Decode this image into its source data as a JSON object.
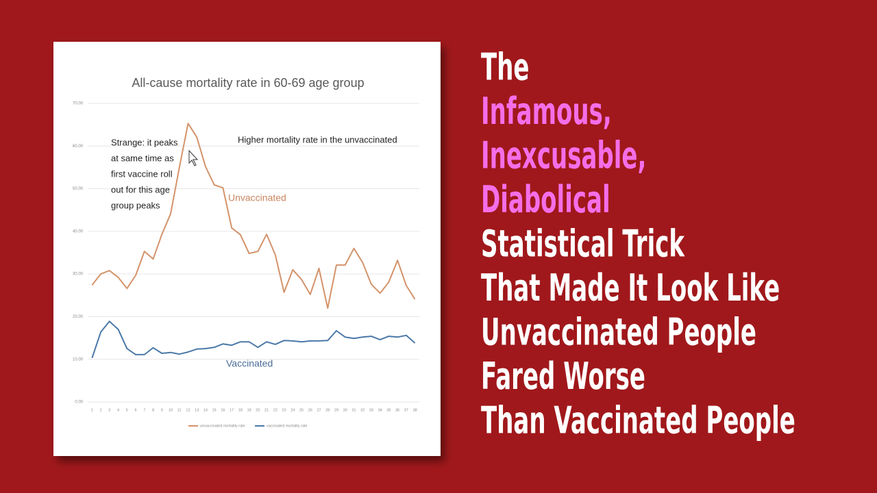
{
  "chart_data": {
    "type": "line",
    "title": "All-cause mortality rate in 60-69 age group",
    "categories": [
      1,
      2,
      3,
      4,
      5,
      6,
      7,
      8,
      9,
      10,
      11,
      12,
      13,
      14,
      15,
      16,
      17,
      18,
      19,
      20,
      21,
      22,
      23,
      24,
      25,
      26,
      27,
      28,
      29,
      30,
      31,
      32,
      33,
      34,
      35,
      36,
      37,
      38
    ],
    "series": [
      {
        "name": "unvaccinated mortality rate",
        "color": "#d4936a",
        "values": [
          27.4,
          30.0,
          30.8,
          29.2,
          26.6,
          29.7,
          35.3,
          33.5,
          39.3,
          44.1,
          54.9,
          65.3,
          62.1,
          55.2,
          50.9,
          50.2,
          40.8,
          39.2,
          34.8,
          35.3,
          39.3,
          34.5,
          25.7,
          31.0,
          28.7,
          25.2,
          31.3,
          22.0,
          32.1,
          32.1,
          36.0,
          32.7,
          27.6,
          25.5,
          28.1,
          33.2,
          27.3,
          24.1
        ]
      },
      {
        "name": "vaccinated mortality rate",
        "color": "#4a78a8",
        "values": [
          10.3,
          16.4,
          18.9,
          17.0,
          12.5,
          11.1,
          11.1,
          12.7,
          11.4,
          11.6,
          11.2,
          11.7,
          12.4,
          12.5,
          12.8,
          13.6,
          13.3,
          14.1,
          14.1,
          12.8,
          14.1,
          13.5,
          14.4,
          14.3,
          14.1,
          14.3,
          14.3,
          14.4,
          16.7,
          15.2,
          14.9,
          15.2,
          15.4,
          14.6,
          15.4,
          15.2,
          15.6,
          13.8
        ]
      }
    ],
    "ylim": [
      0,
      70
    ],
    "yticks": [
      {
        "value": 0,
        "label": "0.00"
      },
      {
        "value": 10,
        "label": "10.00"
      },
      {
        "value": 20,
        "label": "20.00"
      },
      {
        "value": 30,
        "label": "30.00"
      },
      {
        "value": 40,
        "label": "40.00"
      },
      {
        "value": 50,
        "label": "50.00"
      },
      {
        "value": 60,
        "label": "60.00"
      },
      {
        "value": 70,
        "label": "70.00"
      }
    ],
    "grid": true,
    "legend": "bottom",
    "annotations": [
      {
        "lines": [
          "Strange: it peaks",
          "at same time as",
          "first vaccine roll",
          "out for this age",
          "group peaks"
        ]
      },
      {
        "lines": [
          "Higher mortality rate in the unvaccinated"
        ]
      },
      {
        "lines": [
          "Unvaccinated"
        ]
      },
      {
        "lines": [
          "Vaccinated"
        ]
      }
    ]
  },
  "headline": {
    "lines": [
      {
        "text": "The",
        "color": "#ffffff"
      },
      {
        "text": "Infamous,",
        "color": "#f46ee8"
      },
      {
        "text": "Inexcusable,",
        "color": "#f46ee8"
      },
      {
        "text": "Diabolical",
        "color": "#f46ee8"
      },
      {
        "text": "Statistical Trick",
        "color": "#ffffff"
      },
      {
        "text": "That Made It Look Like",
        "color": "#ffffff"
      },
      {
        "text": "Unvaccinated People",
        "color": "#ffffff"
      },
      {
        "text": "Fared Worse",
        "color": "#ffffff"
      },
      {
        "text": "Than Vaccinated People",
        "color": "#ffffff"
      }
    ]
  }
}
